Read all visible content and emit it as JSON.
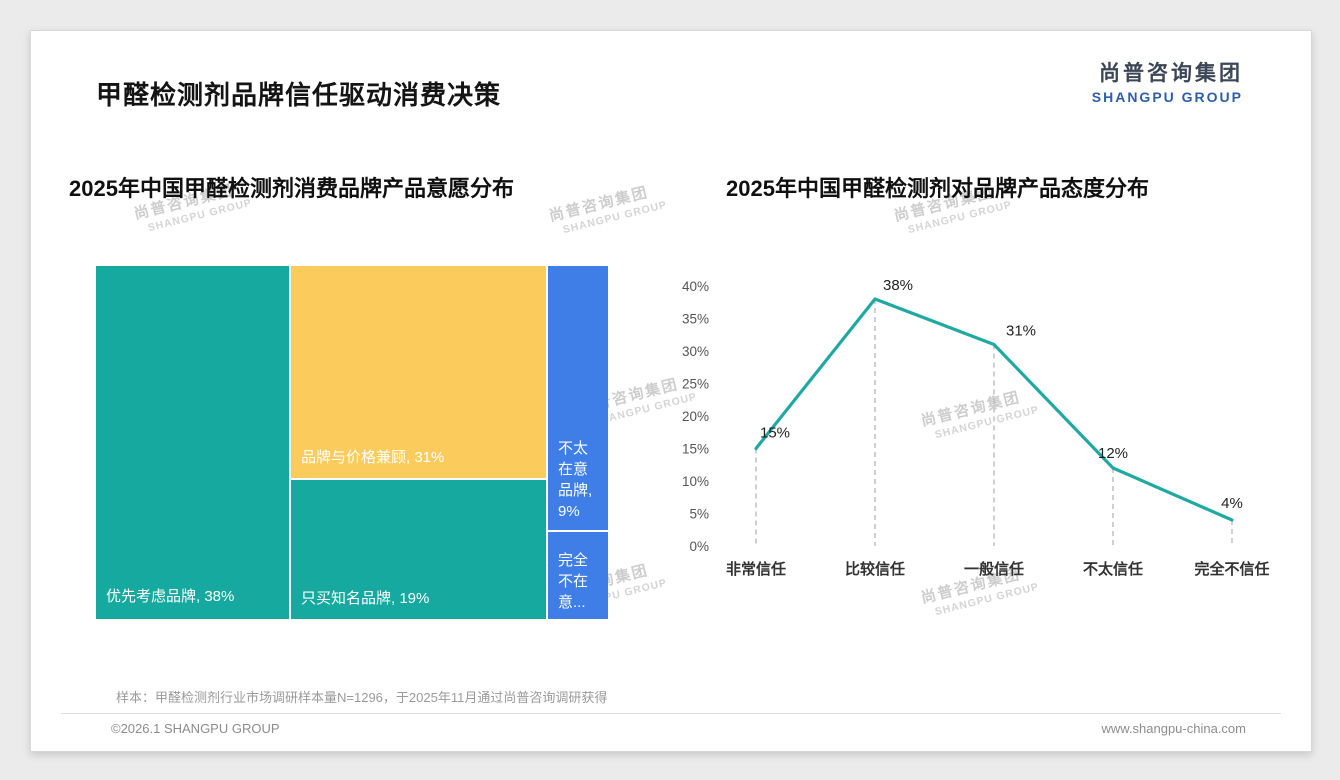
{
  "page": {
    "title": "甲醛检测剂品牌信任驱动消费决策",
    "footer_note": "样本：甲醛检测剂行业市场调研样本量N=1296，于2025年11月通过尚普咨询调研获得",
    "copyright": "©2026.1 SHANGPU GROUP",
    "website": "www.shangpu-china.com"
  },
  "logo": {
    "cn": "尚普咨询集团",
    "en": "SHANGPU GROUP"
  },
  "watermark": {
    "cn": "尚普咨询集团",
    "en": "SHANGPU GROUP"
  },
  "colors": {
    "teal": "#16A9A0",
    "yellow": "#FBCB5B",
    "blue": "#3E7EE6",
    "line": "#1FA9A1",
    "grid": "#BBBBBB",
    "logo_blue": "#2E5EA8"
  },
  "chart_data": [
    {
      "type": "treemap",
      "title": "2025年中国甲醛检测剂消费品牌产品意愿分布",
      "items": [
        {
          "label": "优先考虑品牌",
          "value": 38,
          "display": "优先考虑品牌, 38%",
          "color": "#16A9A0"
        },
        {
          "label": "品牌与价格兼顾",
          "value": 31,
          "display": "品牌与价格兼顾, 31%",
          "color": "#FBCB5B"
        },
        {
          "label": "只买知名品牌",
          "value": 19,
          "display": "只买知名品牌, 19%",
          "color": "#16A9A0"
        },
        {
          "label": "不太在意品牌",
          "value": 9,
          "display": "不太在意品牌, 9%",
          "color": "#3E7EE6"
        },
        {
          "label": "完全不在意",
          "display": "完全不在意...",
          "color": "#3E7EE6"
        }
      ]
    },
    {
      "type": "line",
      "title": "2025年中国甲醛检测剂对品牌产品态度分布",
      "categories": [
        "非常信任",
        "比较信任",
        "一般信任",
        "不太信任",
        "完全不信任"
      ],
      "values": [
        15,
        38,
        31,
        12,
        4
      ],
      "point_labels": [
        "15%",
        "38%",
        "31%",
        "12%",
        "4%"
      ],
      "ylim": [
        0,
        40
      ],
      "ytick_step": 5,
      "ytick_labels": [
        "0%",
        "5%",
        "10%",
        "15%",
        "20%",
        "25%",
        "30%",
        "35%",
        "40%"
      ],
      "grid": "dashed vertical drop lines",
      "legend": "none"
    }
  ]
}
